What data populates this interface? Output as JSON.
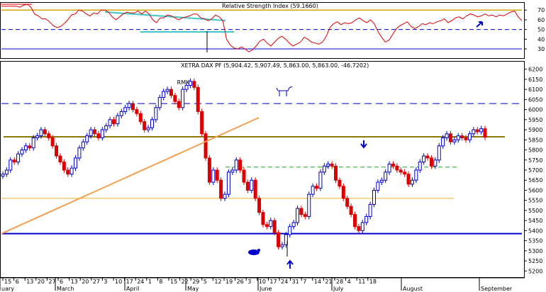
{
  "chart_data": [
    {
      "type": "line",
      "title": "Relative Strength Index (59.1660)",
      "y_ticks": [
        30,
        40,
        50,
        60,
        70
      ],
      "ylim": [
        22,
        76
      ],
      "reference_levels": [
        70,
        50,
        30
      ],
      "values": [
        74,
        74,
        74,
        74,
        74,
        73,
        75,
        76,
        73,
        66,
        64,
        61,
        61,
        58,
        54,
        52,
        53,
        56,
        60,
        65,
        66,
        70,
        69,
        66,
        64,
        67,
        66,
        70,
        70,
        68,
        63,
        60,
        63,
        66,
        68,
        67,
        67,
        69,
        66,
        69,
        66,
        60,
        57,
        62,
        62,
        65,
        64,
        62,
        60,
        62,
        63,
        64,
        66,
        66,
        62,
        61,
        59,
        61,
        65,
        63,
        59,
        40,
        34,
        31,
        30,
        32,
        30,
        27,
        29,
        33,
        38,
        40,
        36,
        33,
        37,
        41,
        43,
        40,
        36,
        33,
        35,
        37,
        42,
        40,
        37,
        36,
        35,
        37,
        43,
        52,
        56,
        58,
        55,
        57,
        56,
        57,
        60,
        62,
        59,
        57,
        60,
        56,
        48,
        42,
        37,
        39,
        45,
        51,
        54,
        56,
        58,
        53,
        51,
        53,
        56,
        55,
        57,
        56,
        58,
        59,
        61,
        57,
        59,
        62,
        63,
        61,
        64,
        66,
        65,
        63,
        64,
        66,
        64,
        65,
        63,
        65,
        64,
        66,
        68,
        69,
        63,
        59
      ]
    },
    {
      "type": "candlestick",
      "title": "XETRA DAX PF (5,904.42, 5,907.49, 5,863.00, 5,863.00, -46.7202)",
      "y_ticks": [
        5200,
        5250,
        5300,
        5350,
        5400,
        5450,
        5500,
        5550,
        5600,
        5650,
        5700,
        5750,
        5800,
        5850,
        5900,
        5950,
        6000,
        6050,
        6100,
        6150,
        6200
      ],
      "ylim": [
        5180,
        6220
      ],
      "closes": [
        5680,
        5700,
        5750,
        5740,
        5780,
        5800,
        5820,
        5810,
        5860,
        5870,
        5900,
        5880,
        5860,
        5820,
        5770,
        5740,
        5700,
        5680,
        5710,
        5760,
        5810,
        5840,
        5870,
        5900,
        5880,
        5860,
        5900,
        5920,
        5950,
        5930,
        5970,
        5990,
        6010,
        6030,
        6000,
        5980,
        5940,
        5900,
        5910,
        5950,
        6010,
        6060,
        6090,
        6100,
        6070,
        6040,
        6010,
        6100,
        6120,
        6140,
        6110,
        5990,
        5880,
        5760,
        5640,
        5700,
        5650,
        5560,
        5580,
        5690,
        5700,
        5750,
        5700,
        5640,
        5600,
        5650,
        5560,
        5490,
        5430,
        5420,
        5450,
        5390,
        5320,
        5330,
        5380,
        5420,
        5440,
        5510,
        5480,
        5470,
        5580,
        5620,
        5610,
        5690,
        5720,
        5730,
        5720,
        5650,
        5620,
        5560,
        5520,
        5480,
        5420,
        5400,
        5440,
        5470,
        5530,
        5600,
        5640,
        5650,
        5690,
        5730,
        5720,
        5700,
        5690,
        5680,
        5630,
        5650,
        5700,
        5740,
        5770,
        5760,
        5720,
        5750,
        5820,
        5860,
        5880,
        5840,
        5850,
        5870,
        5860,
        5850,
        5880,
        5900,
        5890,
        5905,
        5863
      ],
      "horizontal_levels": [
        6030,
        5865,
        5715,
        5560,
        5385
      ],
      "trendline": {
        "from": 5385,
        "to": 5960
      },
      "annotations": [
        {
          "text": "RMK",
          "x_index": 47,
          "value": 6125
        }
      ]
    }
  ],
  "x_axis": {
    "day_labels": [
      "15",
      "6",
      "13",
      "20",
      "27",
      "6",
      "13",
      "20",
      "27",
      "3",
      "10",
      "17",
      "24",
      "1",
      "8",
      "15",
      "22",
      "29",
      "5",
      "12",
      "19",
      "26",
      "3",
      "10",
      "17",
      "24",
      "31",
      "7",
      "14",
      "21",
      "28",
      "4",
      "11",
      "18"
    ],
    "month_labels": [
      "uary",
      "March",
      "April",
      "May",
      "June",
      "July",
      "August",
      "September"
    ]
  },
  "colors": {
    "up_candle": "#0000cc",
    "down_candle": "#dd0000",
    "rsi_line": "#dd0000",
    "rsi_level_70": "#d4a800",
    "blue_level": "#0000cc",
    "olive_level": "#8b7a00",
    "green_level": "#22aa22",
    "orange_level": "#f0b030",
    "trendline": "#f4a050",
    "cyan_line": "#40c8c8",
    "arrow": "#0000cc"
  },
  "icons": [
    "bull-icon",
    "bear-icon",
    "up-arrow-icon",
    "down-arrow-icon"
  ]
}
